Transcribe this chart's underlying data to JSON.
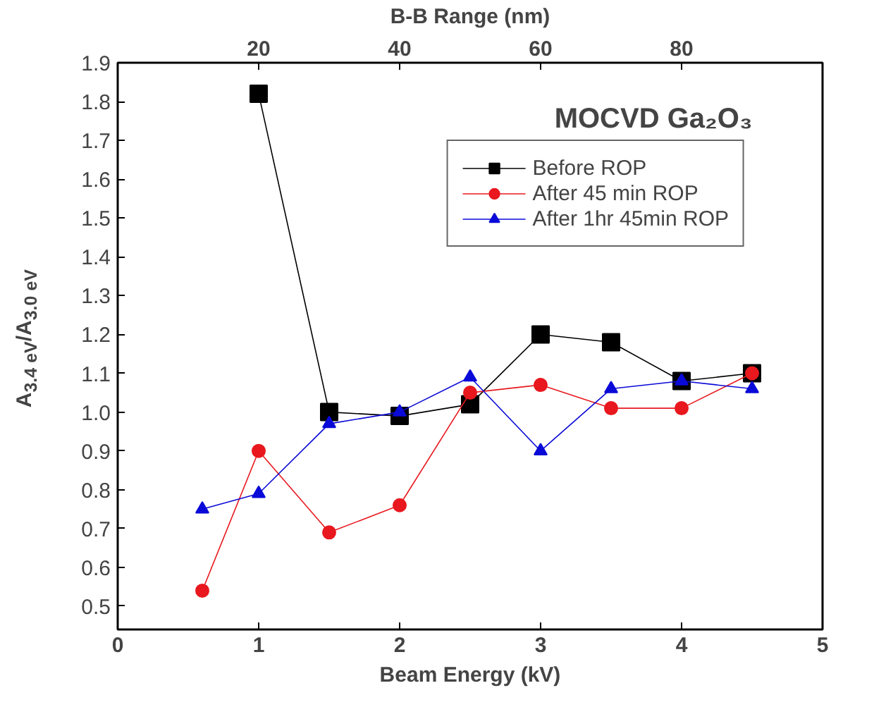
{
  "chart_data": {
    "type": "line",
    "annotations": [
      "MOCVD Ga₂O₃"
    ],
    "xlabel": "Beam Energy (kV)",
    "ylabel": "A$_{3.4 eV}$/A$_{3.0 eV}$",
    "x2label": "B-B Range (nm)",
    "xlim": [
      0,
      5
    ],
    "xticks": [
      0,
      1,
      2,
      3,
      4,
      5
    ],
    "x2lim": [
      0,
      100
    ],
    "x2ticks": [
      20,
      40,
      60,
      80
    ],
    "ylim": [
      0.44,
      1.9
    ],
    "yticks": [
      {
        "value": 0.5,
        "label": "0.5"
      },
      {
        "value": 0.6,
        "label": "0.6"
      },
      {
        "value": 0.7,
        "label": "0.7"
      },
      {
        "value": 0.8,
        "label": "0.8"
      },
      {
        "value": 0.9,
        "label": "0.9"
      },
      {
        "value": 1.0,
        "label": "1.0"
      },
      {
        "value": 1.1,
        "label": "1.1"
      },
      {
        "value": 1.2,
        "label": "1.2"
      },
      {
        "value": 1.3,
        "label": "1.3"
      },
      {
        "value": 1.4,
        "label": "1.4"
      },
      {
        "value": 1.5,
        "label": "1.5"
      },
      {
        "value": 1.6,
        "label": "1.6"
      },
      {
        "value": 1.7,
        "label": "1.7"
      },
      {
        "value": 1.8,
        "label": "1.8"
      },
      {
        "value": 1.9,
        "label": "1.9"
      }
    ],
    "legend": "top right",
    "line_style": "solid",
    "series": [
      {
        "name": "Before ROP",
        "color": "#000000",
        "marker": "square",
        "x": [
          1,
          1.5,
          2,
          2.5,
          3,
          3.5,
          4,
          4.5
        ],
        "values": [
          1.82,
          1.0,
          0.99,
          1.02,
          1.2,
          1.18,
          1.08,
          1.1
        ]
      },
      {
        "name": "After 45 min ROP",
        "color": "#e8181e",
        "marker": "circle",
        "x": [
          0.6,
          1,
          1.5,
          2,
          2.5,
          3,
          3.5,
          4,
          4.5
        ],
        "values": [
          0.54,
          0.9,
          0.69,
          0.76,
          1.05,
          1.07,
          1.01,
          1.01,
          1.1
        ]
      },
      {
        "name": "After 1hr 45min ROP",
        "color": "#0a0ad8",
        "marker": "triangle",
        "x": [
          0.6,
          1,
          1.5,
          2,
          2.5,
          3,
          3.5,
          4,
          4.5
        ],
        "values": [
          0.75,
          0.79,
          0.97,
          1.0,
          1.09,
          0.9,
          1.06,
          1.08,
          1.06
        ]
      }
    ]
  }
}
